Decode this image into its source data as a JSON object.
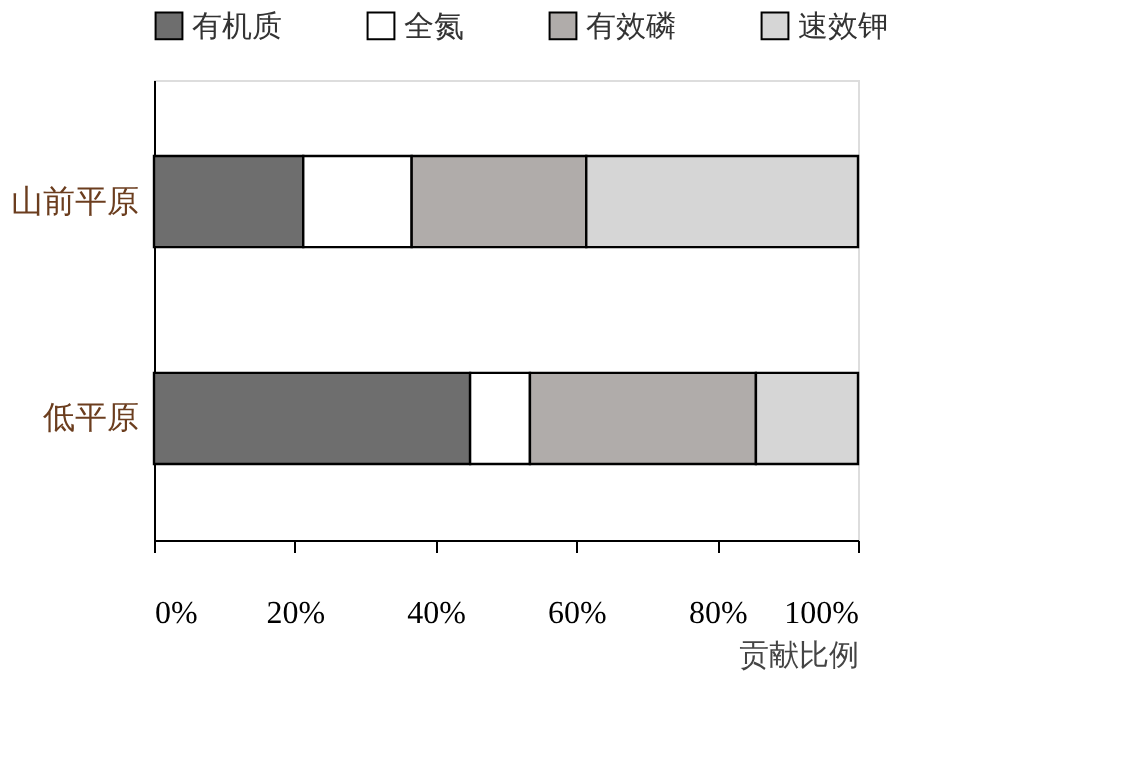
{
  "chart_data": {
    "type": "bar",
    "orientation": "horizontal",
    "stacked": true,
    "categories": [
      "山前平原",
      "低平原"
    ],
    "series": [
      {
        "name": "有机质",
        "color": "#6e6e6e",
        "values": [
          21.2,
          44.9
        ]
      },
      {
        "name": "全氮",
        "color": "#ffffff",
        "values": [
          15.4,
          8.5
        ]
      },
      {
        "name": "有效磷",
        "color": "#b0acaa",
        "values": [
          24.8,
          32.1
        ]
      },
      {
        "name": "速效钾",
        "color": "#d6d6d6",
        "values": [
          38.6,
          14.5
        ]
      }
    ],
    "xlabel": "贡献比例",
    "xlim": [
      0,
      100
    ],
    "xticks": [
      {
        "value": 0,
        "label": "0%"
      },
      {
        "value": 20,
        "label": "20%"
      },
      {
        "value": 40,
        "label": "40%"
      },
      {
        "value": 60,
        "label": "60%"
      },
      {
        "value": 80,
        "label": "80%"
      },
      {
        "value": 100,
        "label": "100%"
      }
    ],
    "grid": false,
    "legend": "top"
  }
}
